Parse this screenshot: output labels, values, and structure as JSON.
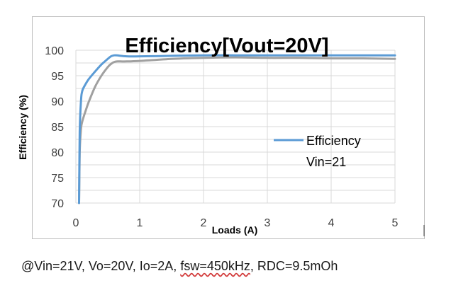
{
  "chart_data": {
    "type": "line",
    "title": "Efficiency[Vout=20V]",
    "xlabel": "Loads (A)",
    "ylabel": "Efficiency (%)",
    "xlim": [
      0,
      5
    ],
    "ylim": [
      70,
      100
    ],
    "xticks": [
      "0",
      "1",
      "2",
      "3",
      "4",
      "5"
    ],
    "yticks": [
      "70",
      "75",
      "80",
      "85",
      "90",
      "95",
      "100"
    ],
    "grid": true,
    "legend_position": "right",
    "legend_entries": [
      "Efficiency",
      "Vin=21"
    ],
    "series": [
      {
        "name": "Efficiency",
        "color": "#5b9bd5",
        "x": [
          0.05,
          0.06,
          0.08,
          0.1,
          0.15,
          0.2,
          0.3,
          0.4,
          0.5,
          0.55,
          0.6,
          0.65,
          0.7,
          0.8,
          1.0,
          1.5,
          2.0,
          2.5,
          3.0,
          3.5,
          4.0,
          4.5,
          5.0
        ],
        "y": [
          70.0,
          84.0,
          90.0,
          92.0,
          93.3,
          94.3,
          95.8,
          97.2,
          98.3,
          98.8,
          99.0,
          99.0,
          98.9,
          98.8,
          98.8,
          98.9,
          99.0,
          99.0,
          99.0,
          99.0,
          99.0,
          99.0,
          99.0
        ]
      },
      {
        "name": "",
        "color": "#a0a0a0",
        "x": [
          0.05,
          0.06,
          0.08,
          0.1,
          0.15,
          0.2,
          0.3,
          0.4,
          0.5,
          0.55,
          0.6,
          0.65,
          0.7,
          0.8,
          1.0,
          1.5,
          2.0,
          2.5,
          3.0,
          3.5,
          4.0,
          4.5,
          5.0
        ],
        "y": [
          70.0,
          80.0,
          84.5,
          86.0,
          88.0,
          89.8,
          92.8,
          95.0,
          96.7,
          97.3,
          97.7,
          97.8,
          97.8,
          97.8,
          97.9,
          98.3,
          98.5,
          98.6,
          98.5,
          98.5,
          98.4,
          98.4,
          98.3
        ]
      }
    ]
  },
  "caption": {
    "before": "@Vin=21V,  Vo=20V,  Io=2A,  ",
    "fsw": "fsw=450kHz",
    "after": ",  RDC=9.5mOh"
  }
}
